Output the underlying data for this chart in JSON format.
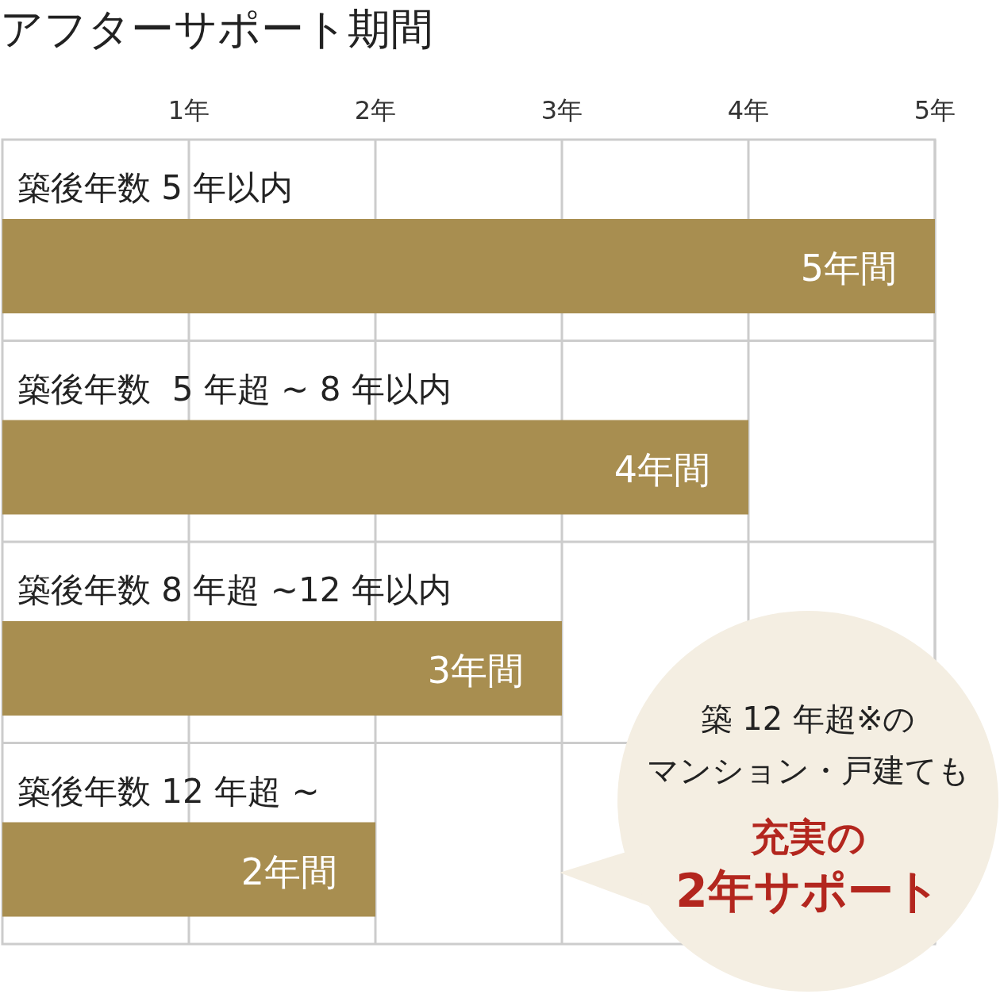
{
  "chart_data": {
    "type": "bar",
    "orientation": "horizontal",
    "title": "アフターサポート期間",
    "categories": [
      "築後年数 5 年以内",
      "築後年数  5 年超 ~ 8 年以内",
      "築後年数 8 年超 ~12 年以内",
      "築後年数 12 年超 ~"
    ],
    "values": [
      5,
      4,
      3,
      2
    ],
    "value_labels": [
      "5年間",
      "4年間",
      "3年間",
      "2年間"
    ],
    "color": "#a88e50",
    "xlim": [
      0,
      5
    ],
    "xticks": [
      {
        "value": 1,
        "label": "1年"
      },
      {
        "value": 2,
        "label": "2年"
      },
      {
        "value": 3,
        "label": "3年"
      },
      {
        "value": 4,
        "label": "4年"
      },
      {
        "value": 5,
        "label": "5年"
      }
    ],
    "grid": "x",
    "annotations": [
      "築 12 年超※の",
      "マンション・戸建ても",
      "充実の",
      "2年サポート"
    ]
  }
}
